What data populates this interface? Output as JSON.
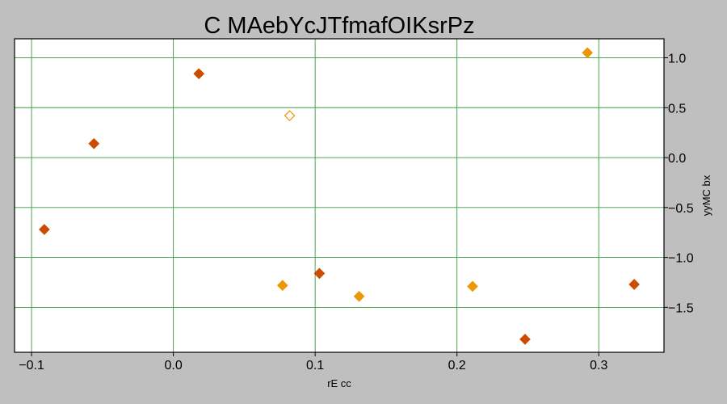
{
  "chart_data": {
    "type": "scatter",
    "title": "C MAebYcJTfmafOIKsrPz",
    "xlabel": "rE cc",
    "ylabel": "yyMC bx",
    "xlim": [
      -0.112,
      0.346
    ],
    "ylim": [
      -1.95,
      1.19
    ],
    "xticks": [
      -0.1,
      0.0,
      0.1,
      0.2,
      0.3
    ],
    "xtick_labels": [
      "−0.1",
      "0.0",
      "0.1",
      "0.2",
      "0.3"
    ],
    "yticks": [
      -1.5,
      -1.0,
      -0.5,
      0.0,
      0.5,
      1.0
    ],
    "ytick_labels": [
      "−1.5",
      "−1.0",
      "−0.5",
      "0.0",
      "0.5",
      "1.0"
    ],
    "y_axis_side": "right",
    "grid": true,
    "grid_color": "#3a9a3a",
    "background": "#ffffff",
    "marker": "diamond",
    "series": [
      {
        "color": "#cc4c02",
        "filled": true,
        "points": [
          {
            "x": -0.091,
            "y": -0.72
          },
          {
            "x": -0.056,
            "y": 0.14
          },
          {
            "x": 0.018,
            "y": 0.84
          },
          {
            "x": 0.103,
            "y": -1.16
          },
          {
            "x": 0.248,
            "y": -1.82
          },
          {
            "x": 0.325,
            "y": -1.27
          }
        ]
      },
      {
        "color": "#ec9706",
        "filled": true,
        "points": [
          {
            "x": 0.077,
            "y": -1.28
          },
          {
            "x": 0.131,
            "y": -1.39
          },
          {
            "x": 0.211,
            "y": -1.29
          },
          {
            "x": 0.292,
            "y": 1.05
          }
        ]
      },
      {
        "color": "#ec9706",
        "filled": false,
        "points": [
          {
            "x": 0.082,
            "y": 0.42
          }
        ]
      }
    ]
  }
}
